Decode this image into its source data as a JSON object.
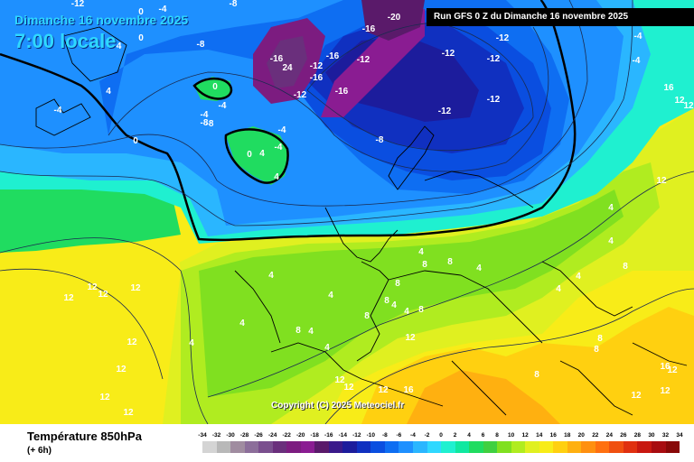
{
  "header": {
    "date": "Dimanche 16 novembre 2025",
    "time": "7:00 locale",
    "run": "Run GFS 0 Z du Dimanche 16 novembre 2025"
  },
  "footer": {
    "copyright": "Copyright (C) 2025 Meteociel.fr",
    "variable": "Température 850hPa",
    "offset": "(+ 6h)"
  },
  "scale": {
    "ticks": [
      "-34",
      "-32",
      "-30",
      "-28",
      "-26",
      "-24",
      "-22",
      "-20",
      "-18",
      "-16",
      "-14",
      "-12",
      "-10",
      "-8",
      "-6",
      "-4",
      "-2",
      "0",
      "2",
      "4",
      "6",
      "8",
      "10",
      "12",
      "14",
      "16",
      "18",
      "20",
      "22",
      "24",
      "26",
      "28",
      "30",
      "32",
      "34"
    ],
    "colors": [
      "#d4d4d4",
      "#b8b8b8",
      "#a08ca0",
      "#8c6e9a",
      "#7a4f8e",
      "#6a2f7c",
      "#7c1c80",
      "#8a1c92",
      "#5a1a6a",
      "#3a1a8a",
      "#1c1c9c",
      "#1030c0",
      "#0a4ee0",
      "#0e6ef2",
      "#1e90ff",
      "#2ab6ff",
      "#2fd8ff",
      "#1ff0d0",
      "#10e8a0",
      "#20dc60",
      "#40d040",
      "#80e020",
      "#b0ec20",
      "#e0f020",
      "#f8ec18",
      "#ffd010",
      "#ffb010",
      "#ff9010",
      "#ff7010",
      "#f05010",
      "#e03010",
      "#c81810",
      "#a80c10",
      "#880808"
    ]
  },
  "map_labels": [
    "-12",
    "-8",
    "-4",
    "-20",
    "-16",
    "0",
    "-4",
    "-8",
    "-12",
    "-16",
    "-12",
    "-4",
    "-16",
    "24",
    "-12",
    "-16",
    "-12",
    "0",
    "-12",
    "-4",
    "-12",
    "-16",
    "-12",
    "-4",
    "-12",
    "-4",
    "-8",
    "-4",
    "-8",
    "-4",
    "0",
    "-4",
    "0",
    "4",
    "-8",
    "4",
    "4",
    "0",
    "4",
    "12",
    "4",
    "8",
    "4",
    "4",
    "8",
    "4",
    "12",
    "12",
    "12",
    "12",
    "12",
    "12",
    "4",
    "8",
    "8",
    "4",
    "4",
    "8",
    "4",
    "8",
    "8",
    "4",
    "4",
    "4",
    "8",
    "12",
    "12",
    "12",
    "12",
    "12",
    "12",
    "4",
    "4",
    "16",
    "12",
    "12",
    "8",
    "16",
    "12",
    "8",
    "8",
    "16",
    "12",
    "12"
  ]
}
